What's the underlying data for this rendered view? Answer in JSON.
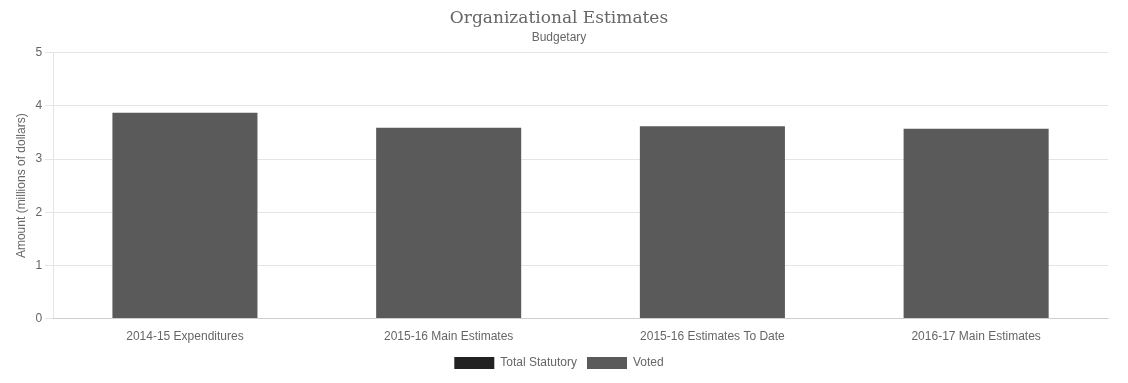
{
  "chart_data": {
    "type": "bar",
    "title": "Organizational Estimates",
    "subtitle": "Budgetary",
    "categories": [
      "2014-15 Expenditures",
      "2015-16 Main Estimates",
      "2015-16 Estimates To Date",
      "2016-17 Main Estimates"
    ],
    "series": [
      {
        "name": "Total Statutory",
        "color": "#222222",
        "values": [
          0.0,
          0.0,
          0.0,
          0.0
        ]
      },
      {
        "name": "Voted",
        "color": "#5a5a5a",
        "values": [
          3.87,
          3.59,
          3.62,
          3.57
        ]
      }
    ],
    "stacked": true,
    "ylabel": "Amount (millions of dollars)",
    "ylim": [
      0,
      5
    ],
    "yticks": [
      0,
      1,
      2,
      3,
      4,
      5
    ],
    "grid": true,
    "legend": "bottom"
  }
}
